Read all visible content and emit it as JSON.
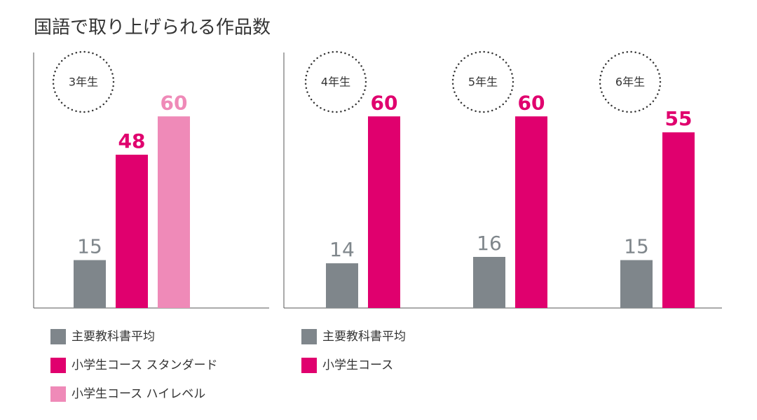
{
  "title": "国語で取り上げられる作品数",
  "chart_data": [
    {
      "type": "bar",
      "categories": [
        "3年生"
      ],
      "ylim": [
        0,
        80
      ],
      "legend": "bottom",
      "series": [
        {
          "name": "主要教科書平均",
          "color": "#7f868b",
          "values": [
            15
          ]
        },
        {
          "name": "小学生コース スタンダード",
          "color": "#e0006e",
          "values": [
            48
          ]
        },
        {
          "name": "小学生コース ハイレベル",
          "color": "#ef8ab8",
          "values": [
            60
          ]
        }
      ]
    },
    {
      "type": "bar",
      "categories": [
        "4年生",
        "5年生",
        "6年生"
      ],
      "ylim": [
        0,
        80
      ],
      "legend": "bottom",
      "series": [
        {
          "name": "主要教科書平均",
          "color": "#7f868b",
          "values": [
            14,
            16,
            15
          ]
        },
        {
          "name": "小学生コース",
          "color": "#e0006e",
          "values": [
            60,
            60,
            55
          ]
        }
      ]
    }
  ]
}
